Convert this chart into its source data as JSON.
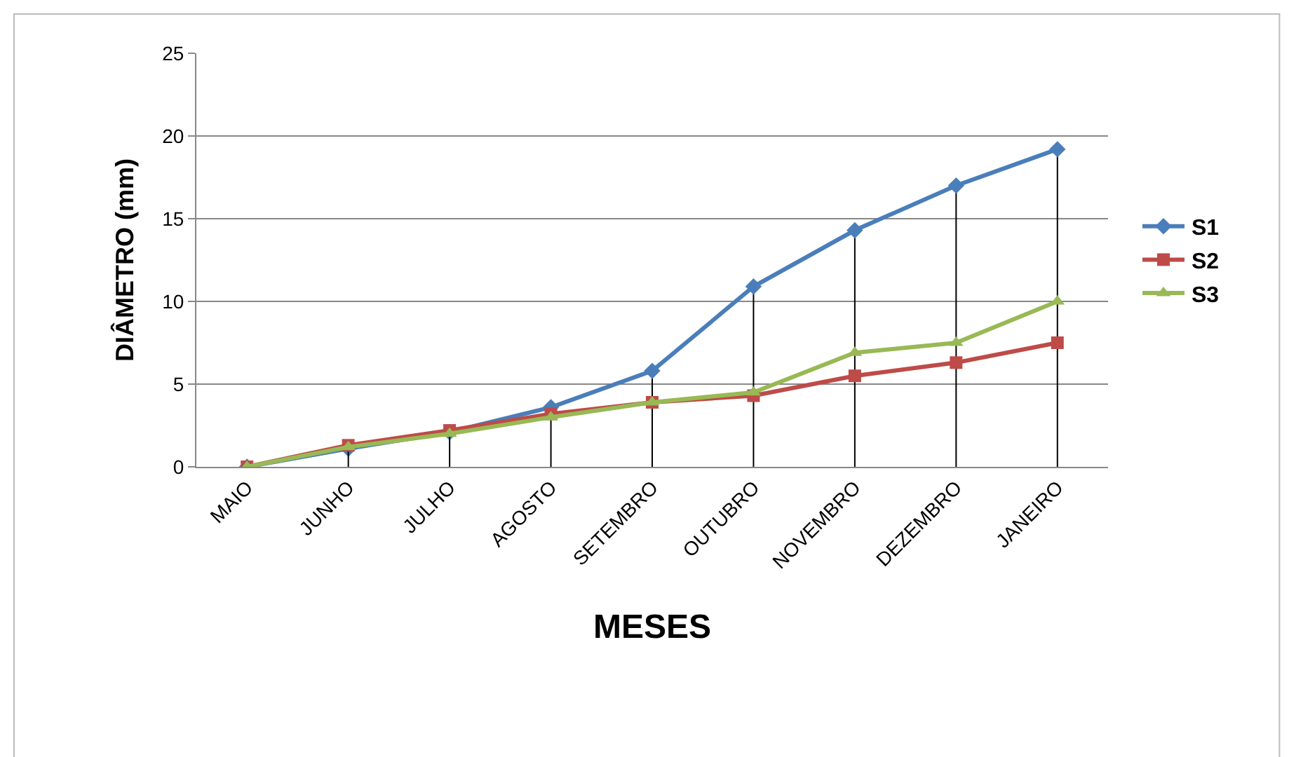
{
  "chart_data": {
    "type": "line",
    "xlabel": "MESES",
    "ylabel": "DIÂMETRO (mm)",
    "categories": [
      "MAIO",
      "JUNHO",
      "JULHO",
      "AGOSTO",
      "SETEMBRO",
      "OUTUBRO",
      "NOVEMBRO",
      "DEZEMBRO",
      "JANEIRO"
    ],
    "series": [
      {
        "name": "S1",
        "color": "#4a7ebb",
        "marker": "diamond",
        "values": [
          0,
          1.1,
          2.1,
          3.6,
          5.8,
          10.9,
          14.3,
          17.0,
          19.2
        ],
        "errors": [
          null,
          null,
          null,
          [
            0,
            3.6
          ],
          [
            0,
            5.8
          ],
          [
            0,
            10.9
          ],
          [
            0,
            14.3
          ],
          [
            0,
            17.0
          ],
          [
            0,
            19.2
          ]
        ]
      },
      {
        "name": "S2",
        "color": "#be4b48",
        "marker": "square",
        "values": [
          0,
          1.3,
          2.2,
          3.2,
          3.9,
          4.3,
          5.5,
          6.3,
          7.5
        ],
        "errors": [
          null,
          [
            0,
            1.3
          ],
          [
            0,
            2.2
          ],
          null,
          null,
          null,
          null,
          null,
          null
        ]
      },
      {
        "name": "S3",
        "color": "#98b954",
        "marker": "triangle",
        "values": [
          0,
          1.2,
          2.0,
          3.0,
          3.9,
          4.5,
          6.9,
          7.5,
          10.0
        ]
      }
    ],
    "ylim": [
      0,
      25
    ],
    "yticks": [
      0,
      5,
      10,
      15,
      20,
      25
    ],
    "grid": "y",
    "legend": "right"
  }
}
